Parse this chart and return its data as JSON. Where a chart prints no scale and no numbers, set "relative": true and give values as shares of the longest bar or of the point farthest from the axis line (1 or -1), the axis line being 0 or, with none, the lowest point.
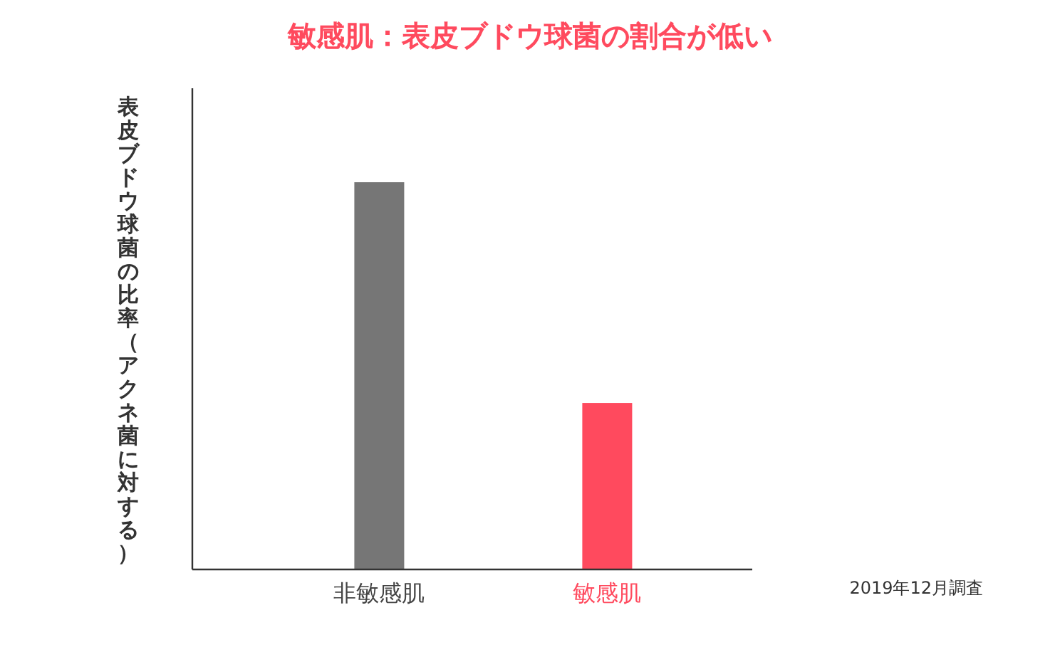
{
  "chart_data": {
    "type": "bar",
    "title": "敏感肌：表皮ブドウ球菌の割合が低い",
    "ylabel": "表皮ブドウ球菌の比率（アクネ菌に対する）",
    "categories": [
      "非敏感肌",
      "敏感肌"
    ],
    "values": [
      1,
      0.43
    ],
    "colors": [
      "#767676",
      "#ff4a5e"
    ],
    "relative": true,
    "annotations": [
      "2019年12月調査"
    ]
  }
}
